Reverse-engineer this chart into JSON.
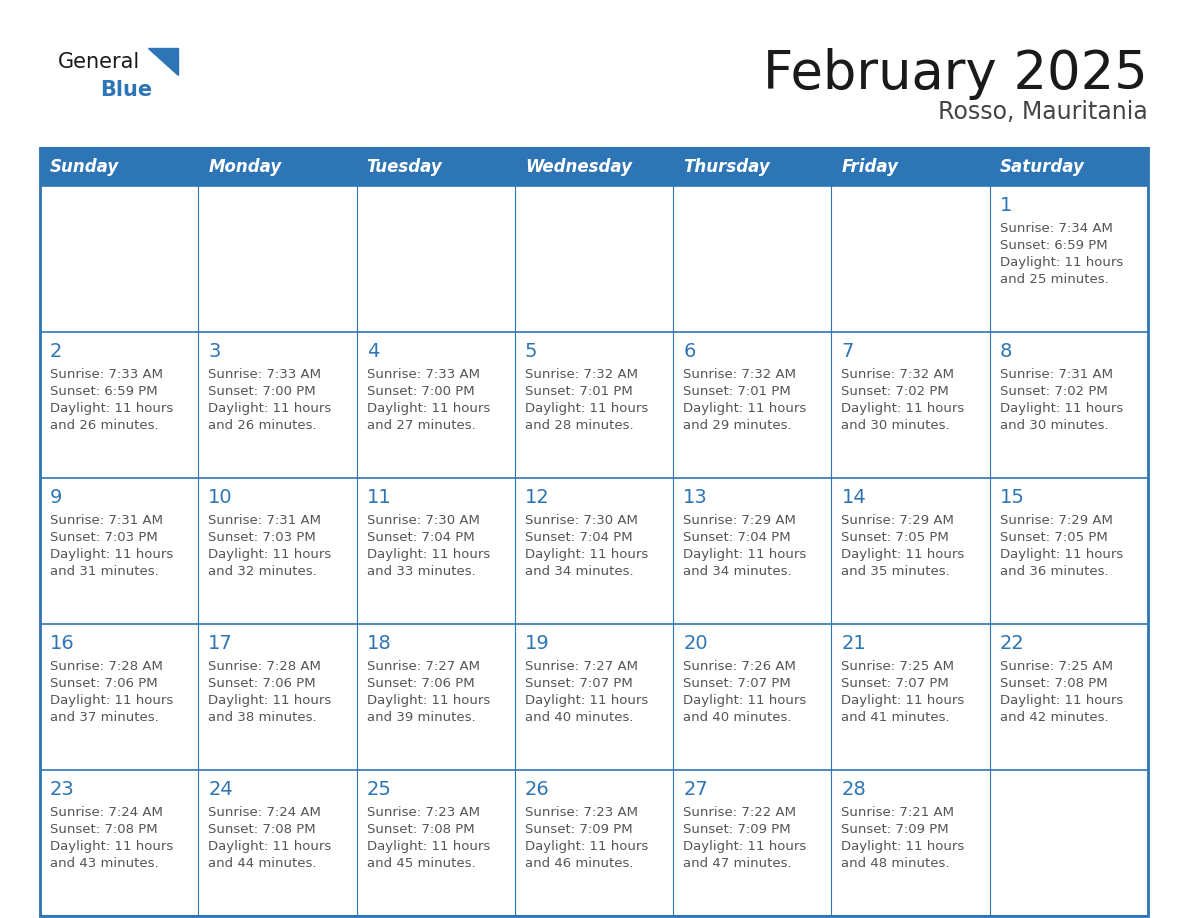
{
  "title": "February 2025",
  "subtitle": "Rosso, Mauritania",
  "days_of_week": [
    "Sunday",
    "Monday",
    "Tuesday",
    "Wednesday",
    "Thursday",
    "Friday",
    "Saturday"
  ],
  "header_bg_color": "#2E75B6",
  "header_text_color": "#FFFFFF",
  "cell_bg_color": "#FFFFFF",
  "cell_border_color": "#2E75B6",
  "day_number_color": "#2E75B6",
  "cell_text_color": "#555555",
  "title_color": "#1a1a1a",
  "subtitle_color": "#444444",
  "logo_general_color": "#1a1a1a",
  "logo_blue_color": "#2E75B6",
  "calendar_data": [
    [
      null,
      null,
      null,
      null,
      null,
      null,
      {
        "day": 1,
        "sunrise": "7:34 AM",
        "sunset": "6:59 PM",
        "daylight": "11 hours and 25 minutes."
      }
    ],
    [
      {
        "day": 2,
        "sunrise": "7:33 AM",
        "sunset": "6:59 PM",
        "daylight": "11 hours and 26 minutes."
      },
      {
        "day": 3,
        "sunrise": "7:33 AM",
        "sunset": "7:00 PM",
        "daylight": "11 hours and 26 minutes."
      },
      {
        "day": 4,
        "sunrise": "7:33 AM",
        "sunset": "7:00 PM",
        "daylight": "11 hours and 27 minutes."
      },
      {
        "day": 5,
        "sunrise": "7:32 AM",
        "sunset": "7:01 PM",
        "daylight": "11 hours and 28 minutes."
      },
      {
        "day": 6,
        "sunrise": "7:32 AM",
        "sunset": "7:01 PM",
        "daylight": "11 hours and 29 minutes."
      },
      {
        "day": 7,
        "sunrise": "7:32 AM",
        "sunset": "7:02 PM",
        "daylight": "11 hours and 30 minutes."
      },
      {
        "day": 8,
        "sunrise": "7:31 AM",
        "sunset": "7:02 PM",
        "daylight": "11 hours and 30 minutes."
      }
    ],
    [
      {
        "day": 9,
        "sunrise": "7:31 AM",
        "sunset": "7:03 PM",
        "daylight": "11 hours and 31 minutes."
      },
      {
        "day": 10,
        "sunrise": "7:31 AM",
        "sunset": "7:03 PM",
        "daylight": "11 hours and 32 minutes."
      },
      {
        "day": 11,
        "sunrise": "7:30 AM",
        "sunset": "7:04 PM",
        "daylight": "11 hours and 33 minutes."
      },
      {
        "day": 12,
        "sunrise": "7:30 AM",
        "sunset": "7:04 PM",
        "daylight": "11 hours and 34 minutes."
      },
      {
        "day": 13,
        "sunrise": "7:29 AM",
        "sunset": "7:04 PM",
        "daylight": "11 hours and 34 minutes."
      },
      {
        "day": 14,
        "sunrise": "7:29 AM",
        "sunset": "7:05 PM",
        "daylight": "11 hours and 35 minutes."
      },
      {
        "day": 15,
        "sunrise": "7:29 AM",
        "sunset": "7:05 PM",
        "daylight": "11 hours and 36 minutes."
      }
    ],
    [
      {
        "day": 16,
        "sunrise": "7:28 AM",
        "sunset": "7:06 PM",
        "daylight": "11 hours and 37 minutes."
      },
      {
        "day": 17,
        "sunrise": "7:28 AM",
        "sunset": "7:06 PM",
        "daylight": "11 hours and 38 minutes."
      },
      {
        "day": 18,
        "sunrise": "7:27 AM",
        "sunset": "7:06 PM",
        "daylight": "11 hours and 39 minutes."
      },
      {
        "day": 19,
        "sunrise": "7:27 AM",
        "sunset": "7:07 PM",
        "daylight": "11 hours and 40 minutes."
      },
      {
        "day": 20,
        "sunrise": "7:26 AM",
        "sunset": "7:07 PM",
        "daylight": "11 hours and 40 minutes."
      },
      {
        "day": 21,
        "sunrise": "7:25 AM",
        "sunset": "7:07 PM",
        "daylight": "11 hours and 41 minutes."
      },
      {
        "day": 22,
        "sunrise": "7:25 AM",
        "sunset": "7:08 PM",
        "daylight": "11 hours and 42 minutes."
      }
    ],
    [
      {
        "day": 23,
        "sunrise": "7:24 AM",
        "sunset": "7:08 PM",
        "daylight": "11 hours and 43 minutes."
      },
      {
        "day": 24,
        "sunrise": "7:24 AM",
        "sunset": "7:08 PM",
        "daylight": "11 hours and 44 minutes."
      },
      {
        "day": 25,
        "sunrise": "7:23 AM",
        "sunset": "7:08 PM",
        "daylight": "11 hours and 45 minutes."
      },
      {
        "day": 26,
        "sunrise": "7:23 AM",
        "sunset": "7:09 PM",
        "daylight": "11 hours and 46 minutes."
      },
      {
        "day": 27,
        "sunrise": "7:22 AM",
        "sunset": "7:09 PM",
        "daylight": "11 hours and 47 minutes."
      },
      {
        "day": 28,
        "sunrise": "7:21 AM",
        "sunset": "7:09 PM",
        "daylight": "11 hours and 48 minutes."
      },
      null
    ]
  ],
  "num_cols": 7,
  "num_rows": 5
}
